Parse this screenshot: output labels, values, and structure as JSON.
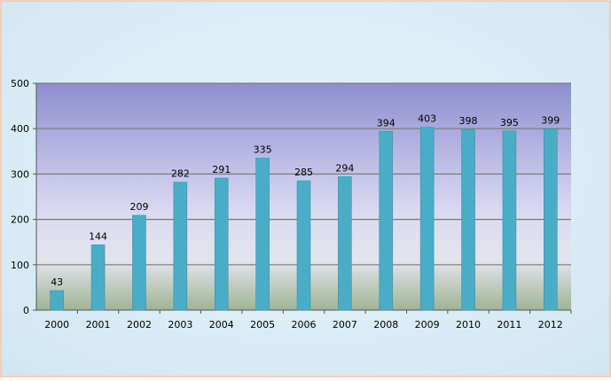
{
  "chart_data": {
    "type": "bar",
    "title": "",
    "xlabel": "",
    "ylabel": "",
    "categories": [
      "2000",
      "2001",
      "2002",
      "2003",
      "2004",
      "2005",
      "2006",
      "2007",
      "2008",
      "2009",
      "2010",
      "2011",
      "2012"
    ],
    "values": [
      43,
      144,
      209,
      282,
      291,
      335,
      285,
      294,
      394,
      403,
      398,
      395,
      399
    ],
    "ylim": [
      0,
      500
    ],
    "yticks": [
      "0",
      "100",
      "200",
      "300",
      "400",
      "500"
    ],
    "grid": true,
    "legend": "none",
    "colors": {
      "bar": "#4bacc6",
      "bar_dark": "#3a95ad",
      "plot_top": "#8e8ed0",
      "plot_mid": "#d8d8f2",
      "plot_bottom": "#9fb494",
      "gridline": "#7a7a7a",
      "outer_bg": "#d6ecf6",
      "outer_border": "#f2c4a8"
    }
  }
}
